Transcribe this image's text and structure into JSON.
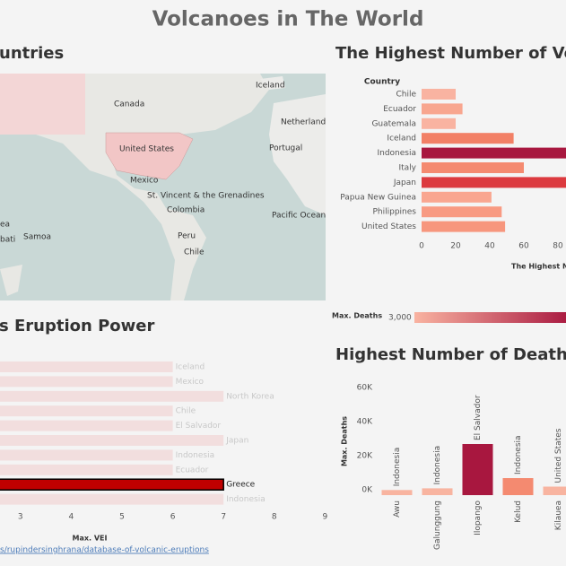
{
  "title": "Volcanoes in The World",
  "map": {
    "title": "untries",
    "labels": [
      "Iceland",
      "Canada",
      "Netherland",
      "United States",
      "Portugal",
      "Mexico",
      "St. Vincent & the Grenadines",
      "Colombia",
      "Pacific Ocean",
      "Peru",
      "Chile",
      "Samoa",
      "ea",
      "bati"
    ]
  },
  "source": "s/rupindersinghrana/database-of-volcanic-eruptions",
  "chart_data": [
    {
      "type": "hbar",
      "title": "The Highest Number of Volca",
      "column_header": "Country",
      "x_label": "The Highest N",
      "categories": [
        "Chile",
        "Ecuador",
        "Guatemala",
        "Iceland",
        "Indonesia",
        "Italy",
        "Japan",
        "Papua New Guinea",
        "Philippines",
        "United States"
      ],
      "values": [
        20,
        24,
        20,
        54,
        95,
        60,
        88,
        41,
        47,
        49
      ],
      "colors": [
        "#f9b3a1",
        "#f8a68f",
        "#f9b3a1",
        "#f28066",
        "#a8173f",
        "#f48a70",
        "#dc3a3f",
        "#f9a690",
        "#f89a82",
        "#f7967d"
      ],
      "xlim": [
        0,
        85
      ],
      "xticks": [
        0,
        20,
        40,
        60,
        80
      ],
      "color_legend": {
        "title": "Max. Deaths",
        "ticks": [
          {
            "value": 3000,
            "label": "3,000"
          }
        ]
      }
    },
    {
      "type": "hbar-labeled",
      "title": "s Eruption Power",
      "x_label": "Max. VEI",
      "categories": [
        "Iceland",
        "Mexico",
        "North Korea",
        "Chile",
        "El Salvador",
        "Japan",
        "Indonesia",
        "Ecuador",
        "Greece",
        "Indonesia"
      ],
      "values": [
        6,
        6,
        7,
        6,
        6,
        7,
        6,
        6,
        7,
        7
      ],
      "colors": [
        "#f2dede",
        "#f2dede",
        "#f2dede",
        "#f2dede",
        "#f2dede",
        "#f2dede",
        "#f2dede",
        "#f2dede",
        "#c00000",
        "#f2dede"
      ],
      "xlim": [
        0,
        9
      ],
      "xticks": [
        3,
        4,
        5,
        6,
        7,
        8,
        9
      ]
    },
    {
      "type": "vbar",
      "title": "Highest Number of Deaths",
      "y_label": "Max. Deaths",
      "categories": [
        "Awu",
        "Galunggung",
        "Ilopango",
        "Kelud",
        "Kilauea"
      ],
      "bar_labels": [
        "Indonesia",
        "Indonesia",
        "El Salvador",
        "Indonesia",
        "United States"
      ],
      "values": [
        3000,
        4000,
        30000,
        10000,
        5000
      ],
      "colors": [
        "#f8b4a0",
        "#f8b4a0",
        "#a8173f",
        "#f48a70",
        "#f8b4a0"
      ],
      "ylim": [
        0,
        64000
      ],
      "yticks": [
        {
          "value": 0,
          "label": "0K"
        },
        {
          "value": 20000,
          "label": "20K"
        },
        {
          "value": 40000,
          "label": "40K"
        },
        {
          "value": 60000,
          "label": "60K"
        }
      ]
    }
  ]
}
